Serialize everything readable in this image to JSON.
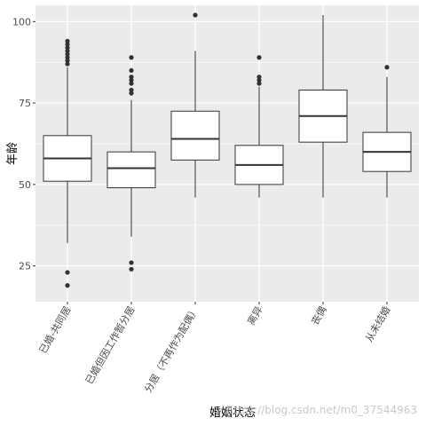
{
  "chart_data": {
    "type": "boxplot",
    "xlabel": "婚姻状态",
    "ylabel": "年龄",
    "ylim": [
      14,
      105
    ],
    "yticks": [
      25,
      50,
      75,
      100
    ],
    "grid": true,
    "colors": {
      "panel": "#ebebeb",
      "grid": "#ffffff",
      "box_fill": "#ffffff",
      "line": "#333333",
      "outlier": "#333333"
    },
    "categories": [
      "已婚-共同居",
      "已婚但因工作暂分居",
      "分居（不再作为配偶）",
      "离异",
      "丧偶",
      "从未结婚"
    ],
    "series": [
      {
        "category": "已婚-共同居",
        "whisker_low": 32,
        "q1": 51,
        "median": 58,
        "q3": 65,
        "whisker_high": 86,
        "outliers": [
          19,
          23,
          87,
          88,
          89,
          90,
          91,
          92,
          93,
          94
        ]
      },
      {
        "category": "已婚但因工作暂分居",
        "whisker_low": 34,
        "q1": 49,
        "median": 55,
        "q3": 60,
        "whisker_high": 76,
        "outliers": [
          24,
          26,
          78,
          79,
          81,
          82,
          83,
          85,
          89
        ]
      },
      {
        "category": "分居（不再作为配偶）",
        "whisker_low": 46,
        "q1": 57.5,
        "median": 64,
        "q3": 72.5,
        "whisker_high": 91,
        "outliers": [
          102
        ]
      },
      {
        "category": "离异",
        "whisker_low": 46,
        "q1": 50,
        "median": 56,
        "q3": 62,
        "whisker_high": 80,
        "outliers": [
          81,
          82,
          83,
          89
        ]
      },
      {
        "category": "丧偶",
        "whisker_low": 46,
        "q1": 63,
        "median": 71,
        "q3": 79,
        "whisker_high": 102,
        "outliers": []
      },
      {
        "category": "从未结婚",
        "whisker_low": 46,
        "q1": 54,
        "median": 60,
        "q3": 66,
        "whisker_high": 83,
        "outliers": [
          86
        ]
      }
    ]
  },
  "watermark": "https://blog.csdn.net/m0_37544963"
}
